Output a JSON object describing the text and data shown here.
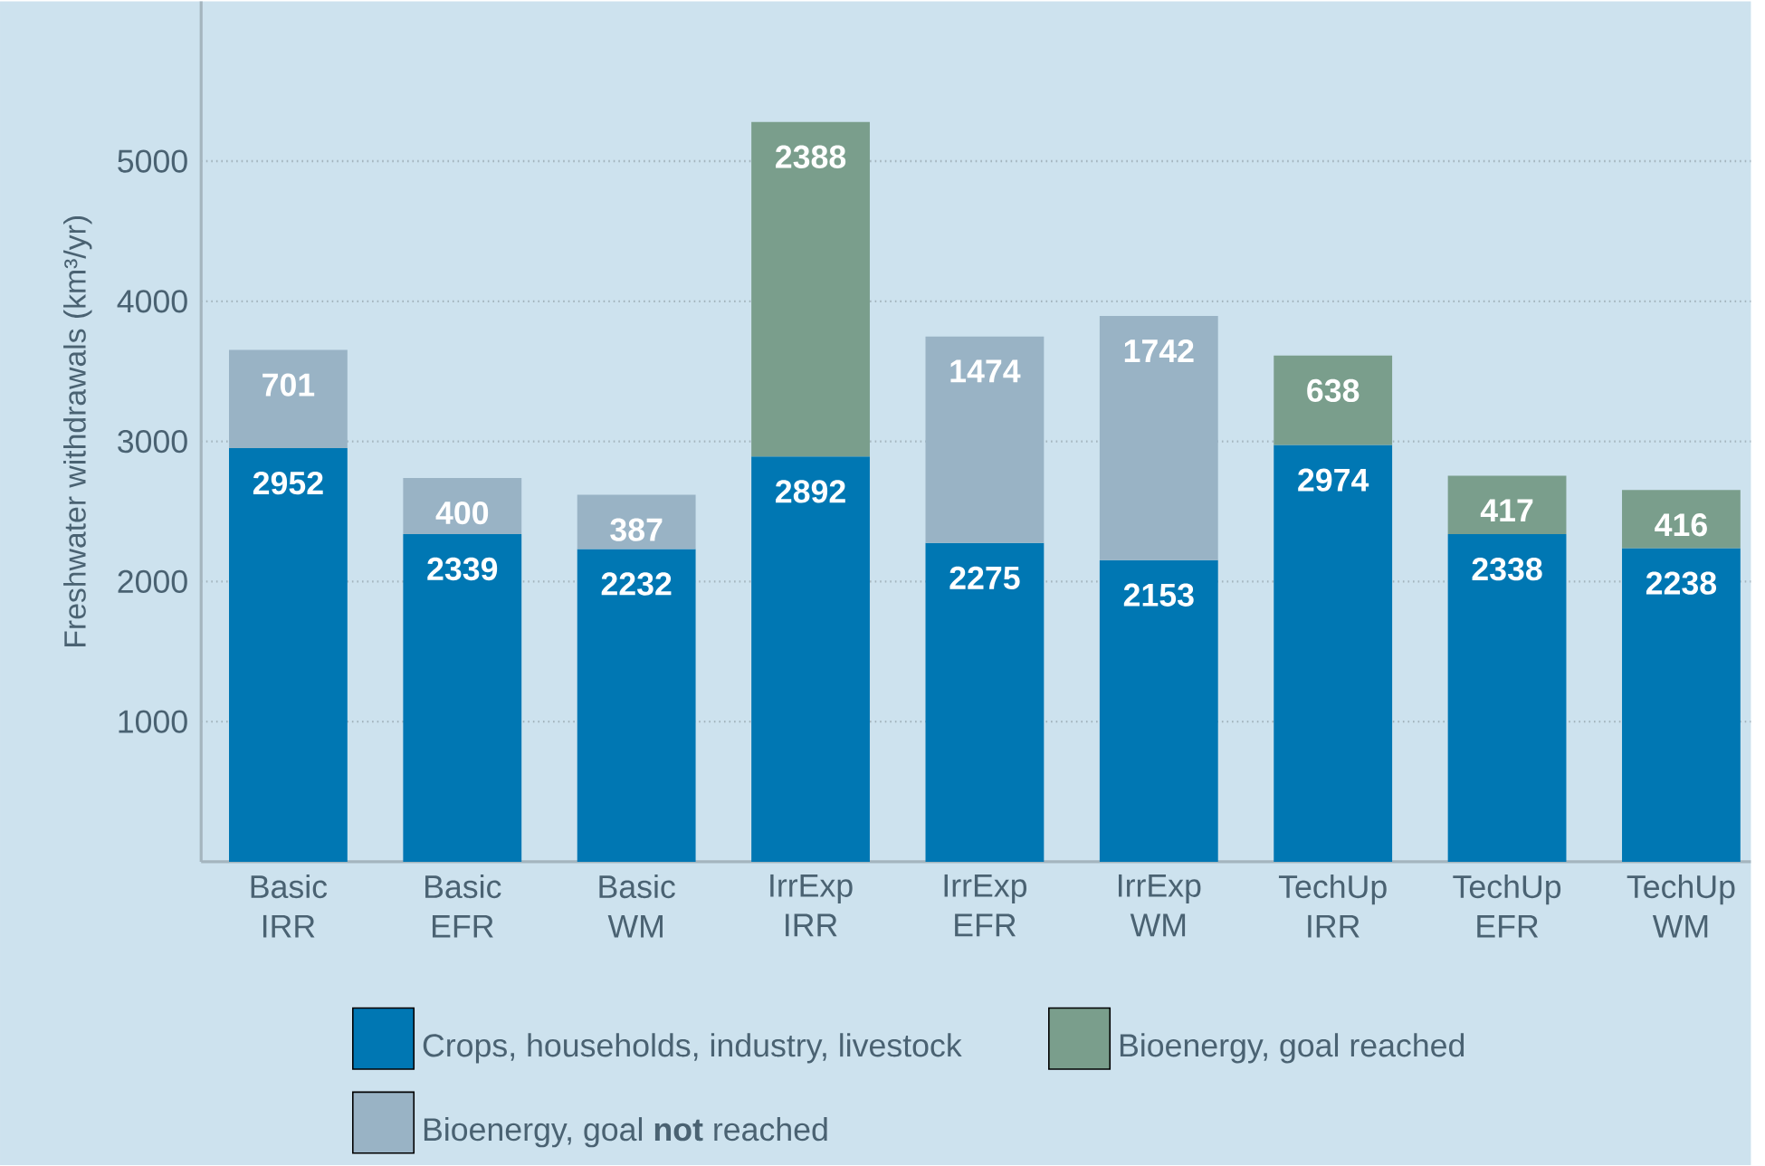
{
  "chart_data": {
    "type": "bar",
    "stacked": true,
    "ylabel": "Freshwater withdrawals (km³/yr)",
    "categories": [
      "Basic IRR",
      "Basic EFR",
      "Basic WM",
      "IrrExp IRR",
      "IrrExp EFR",
      "IrrExp WM",
      "TechUp IRR",
      "TechUp EFR",
      "TechUp WM"
    ],
    "series": [
      {
        "name": "Crops, households, industry, livestock",
        "color": "#0077b3",
        "values": [
          2952,
          2339,
          2232,
          2892,
          2275,
          2153,
          2974,
          2338,
          2238
        ]
      },
      {
        "name": "Bioenergy, goal reached",
        "color": "#7a9e8c",
        "values": [
          null,
          null,
          null,
          2388,
          null,
          null,
          638,
          417,
          416
        ]
      },
      {
        "name": "Bioenergy, goal **not** reached",
        "color": "#99b3c5",
        "values": [
          701,
          400,
          387,
          null,
          1474,
          1742,
          null,
          null,
          null
        ]
      }
    ],
    "ylim": [
      0,
      6140
    ],
    "yticks": [
      1000,
      2000,
      3000,
      4000,
      5000
    ],
    "grid": "y",
    "legend": "bottom",
    "data_labels": true
  }
}
